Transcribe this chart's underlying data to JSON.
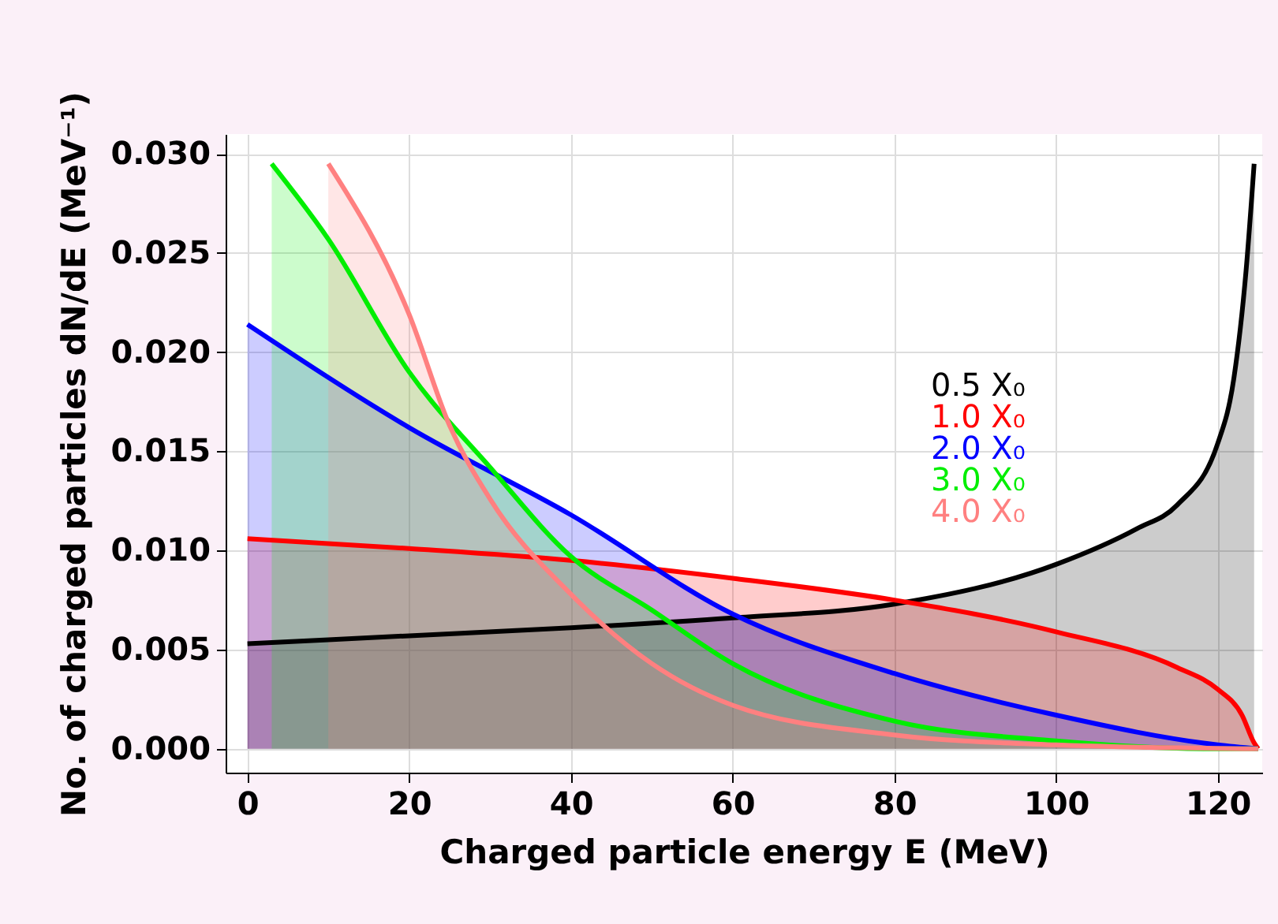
{
  "chart_data": {
    "type": "area",
    "xlabel": "Charged particle energy E (MeV)",
    "ylabel": "No. of charged particles dN/dE (MeV⁻¹)",
    "xlim": [
      -2.7,
      125.5
    ],
    "ylim": [
      -0.0012,
      0.031
    ],
    "xticks": [
      0,
      20,
      40,
      60,
      80,
      100,
      120
    ],
    "yticks": [
      {
        "value": 0,
        "label": "0.000"
      },
      {
        "value": 0.005,
        "label": "0.005"
      },
      {
        "value": 0.01,
        "label": "0.010"
      },
      {
        "value": 0.015,
        "label": "0.015"
      },
      {
        "value": 0.02,
        "label": "0.020"
      },
      {
        "value": 0.025,
        "label": "0.025"
      },
      {
        "value": 0.03,
        "label": "0.030"
      }
    ],
    "grid": true,
    "legend": "top right",
    "series": [
      {
        "name": "0.5 X₀",
        "color": "#000000",
        "x": [
          0,
          20,
          40,
          60,
          80,
          100,
          110,
          115,
          120,
          122,
          123.5,
          124.5
        ],
        "values": [
          0.0053,
          0.0057,
          0.0061,
          0.0066,
          0.0073,
          0.0093,
          0.0111,
          0.0123,
          0.0154,
          0.0187,
          0.0241,
          0.0295
        ]
      },
      {
        "name": "1.0 X₀",
        "color": "#ff0000",
        "x": [
          0,
          20,
          40,
          60,
          80,
          100,
          115,
          120,
          123,
          124.5,
          125
        ],
        "values": [
          0.0106,
          0.0101,
          0.0095,
          0.0086,
          0.0075,
          0.0059,
          0.0041,
          0.003,
          0.0017,
          0.0003,
          0
        ]
      },
      {
        "name": "2.0 X₀",
        "color": "#0000ff",
        "x": [
          0,
          20,
          40,
          60,
          80,
          100,
          120,
          125
        ],
        "values": [
          0.0214,
          0.0162,
          0.0118,
          0.0068,
          0.0038,
          0.0017,
          0.0002,
          0
        ]
      },
      {
        "name": "3.0 X₀",
        "color": "#00ee00",
        "x": [
          3,
          10,
          20,
          30,
          40,
          50,
          60,
          80,
          100,
          120,
          125
        ],
        "values": [
          0.0295,
          0.0257,
          0.019,
          0.0142,
          0.0097,
          0.007,
          0.0043,
          0.0014,
          0.0004,
          0,
          0
        ]
      },
      {
        "name": "4.0 X₀",
        "color": "#ff8080",
        "x": [
          10,
          20,
          25,
          30,
          40,
          50,
          60,
          80,
          100,
          125
        ],
        "values": [
          0.0295,
          0.0219,
          0.0163,
          0.0126,
          0.0078,
          0.0043,
          0.0022,
          0.0007,
          0.0002,
          0
        ]
      }
    ]
  }
}
